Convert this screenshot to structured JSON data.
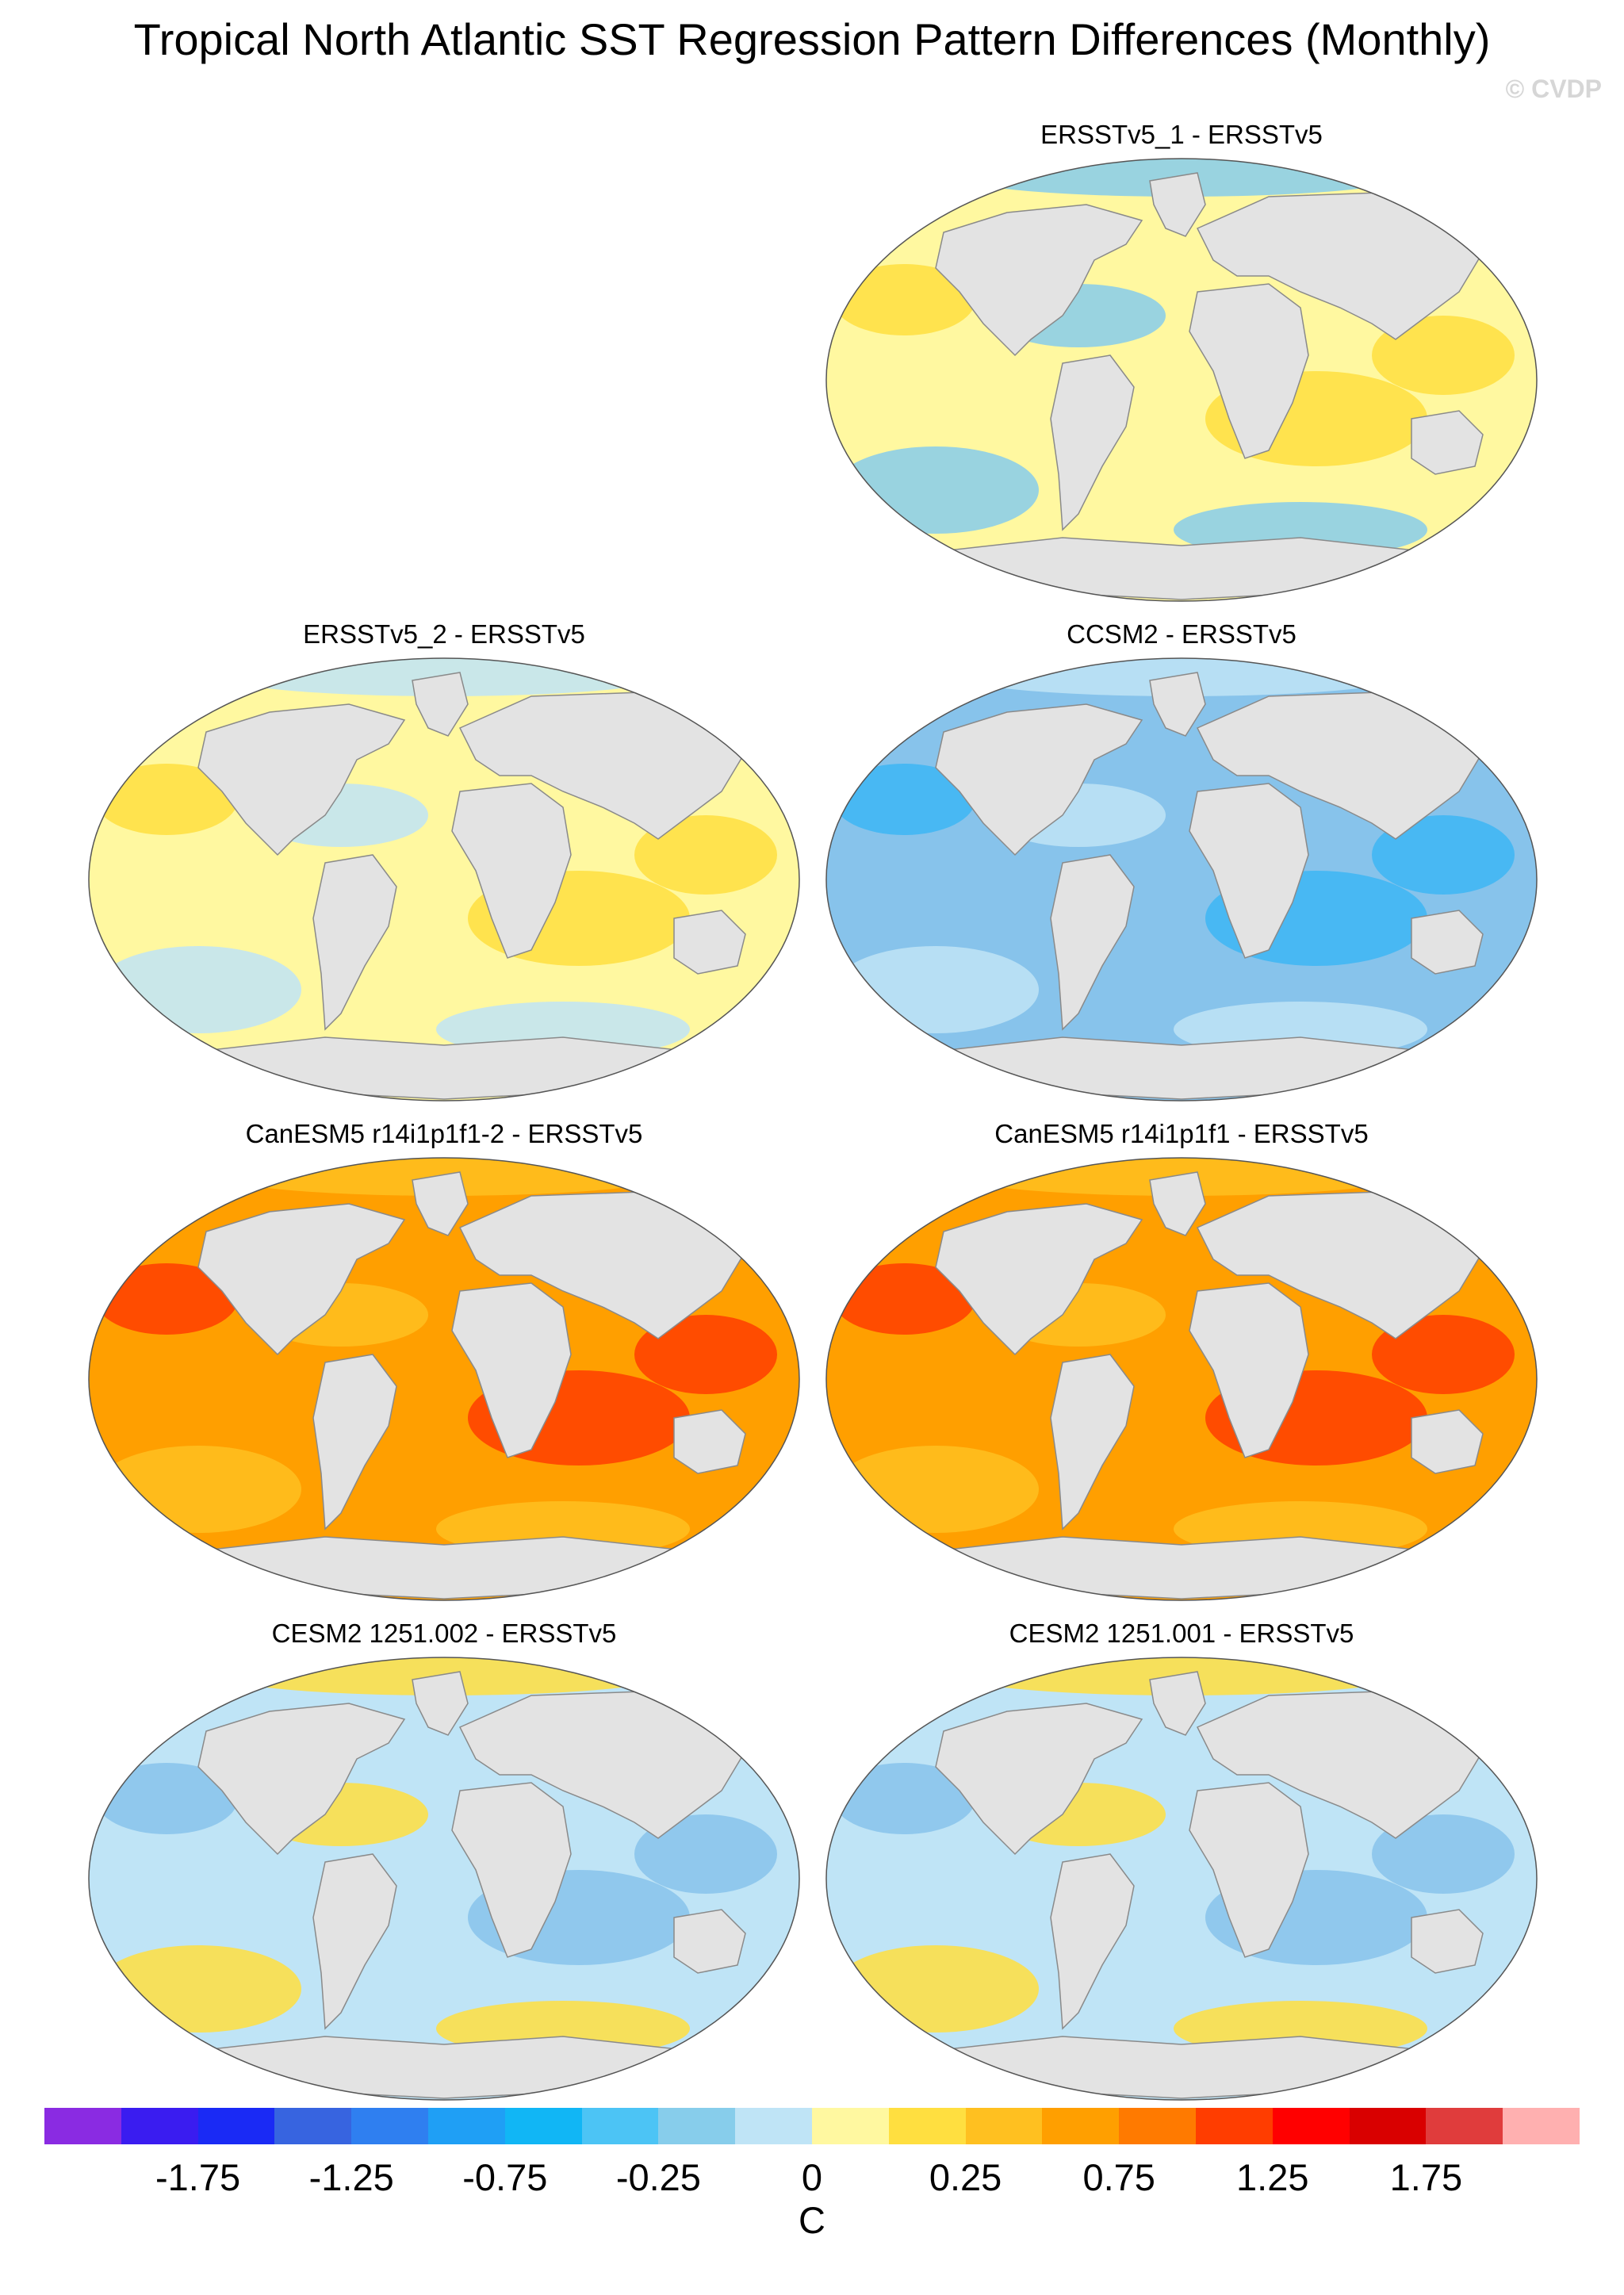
{
  "title": "Tropical North Atlantic SST Regression Pattern Differences (Monthly)",
  "credit": "© CVDP",
  "panels": [
    {
      "label": "ERSSTv5_1 - ERSSTv5",
      "ocean_color": "#fff8a0",
      "accents": [
        "#87cdeb",
        "#ffdf40"
      ]
    },
    {
      "label": "ERSSTv5_2 - ERSSTv5",
      "ocean_color": "#fff8a0",
      "accents": [
        "#bfe4f6",
        "#ffdf40"
      ]
    },
    {
      "label": "CCSM2 - ERSSTv5",
      "ocean_color": "#87c3eb",
      "accents": [
        "#bfe4f6",
        "#3db6f5"
      ]
    },
    {
      "label": "CanESM5 r14i1p1f1-2 - ERSSTv5",
      "ocean_color": "#ff9f00",
      "accents": [
        "#ffc020",
        "#ff3d00"
      ]
    },
    {
      "label": "CanESM5 r14i1p1f1 - ERSSTv5",
      "ocean_color": "#ff9f00",
      "accents": [
        "#ffc020",
        "#ff3d00"
      ]
    },
    {
      "label": "CESM2 1251.002 - ERSSTv5",
      "ocean_color": "#bfe4f6",
      "accents": [
        "#ffdf40",
        "#87c3eb"
      ]
    },
    {
      "label": "CESM2 1251.001 - ERSSTv5",
      "ocean_color": "#bfe4f6",
      "accents": [
        "#ffdf40",
        "#87c3eb"
      ]
    }
  ],
  "colorbar": {
    "unit": "C",
    "colors": [
      "#8a2be2",
      "#3a1cf0",
      "#1a2af5",
      "#3764e0",
      "#2f7ff0",
      "#1f9ff5",
      "#11b6f5",
      "#4cc4f5",
      "#87cdeb",
      "#bfe4f6",
      "#fff8a0",
      "#ffdf40",
      "#ffc020",
      "#ff9f00",
      "#ff7a00",
      "#ff3d00",
      "#ff0000",
      "#d90000",
      "#e03c3c",
      "#ffb0b0"
    ],
    "tick_labels": [
      "-1.75",
      "-1.25",
      "-0.75",
      "-0.25",
      "0",
      "0.25",
      "0.75",
      "1.25",
      "1.75"
    ]
  }
}
